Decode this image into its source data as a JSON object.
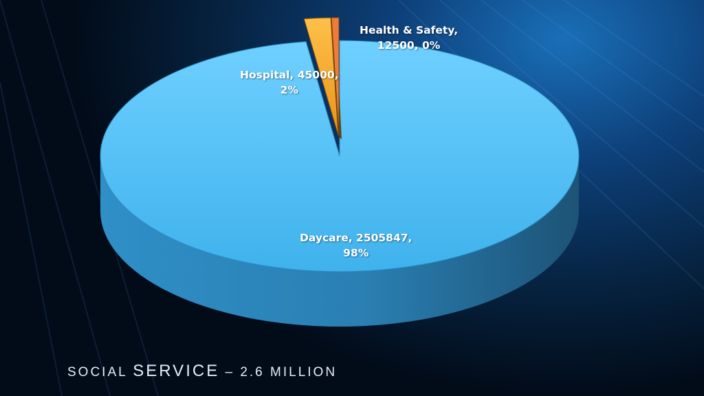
{
  "slide": {
    "title_part1": "SOCIAL ",
    "title_part2": "SERVICE",
    "title_part3": " – 2.6 MILLION"
  },
  "colors": {
    "daycare": "#4fc3f7",
    "hospital": "#f7a823",
    "health_safety": "#f07a3a"
  },
  "chart_data": {
    "type": "pie",
    "three_d": true,
    "categories": [
      "Daycare",
      "Hospital",
      "Health & Safety"
    ],
    "values": [
      2505847,
      45000,
      12500
    ],
    "percent_labels": [
      "98%",
      "2%",
      "0%"
    ],
    "labels": [
      {
        "line1": "Daycare, 2505847,",
        "line2": "98%"
      },
      {
        "line1": "Hospital, 45000,",
        "line2": "2%"
      },
      {
        "line1": "Health & Safety,",
        "line2": "12500, 0%"
      }
    ],
    "title": "",
    "legend": "none"
  }
}
